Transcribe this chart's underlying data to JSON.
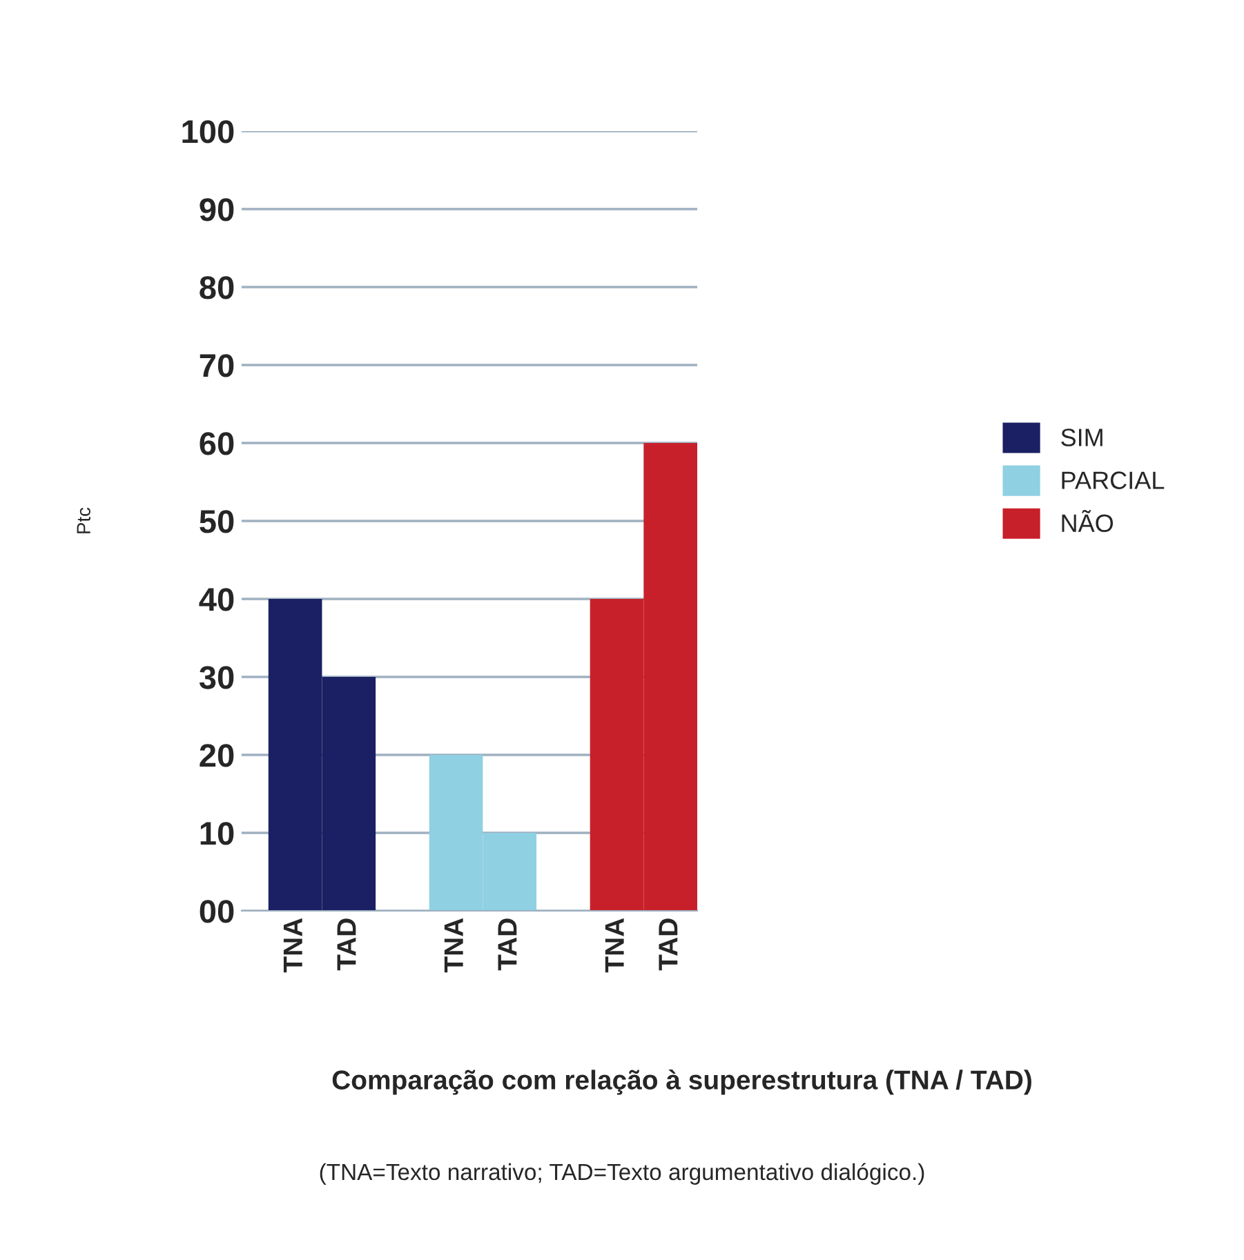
{
  "chart_data": {
    "type": "bar",
    "xlabel": "Comparação com relação à superestrutura (TNA / TAD)",
    "ylabel": "Ptc",
    "categories": [
      "TNA",
      "TAD",
      null,
      "TNA",
      "TAD",
      null,
      "TNA",
      "TAD"
    ],
    "series": [
      {
        "name": "SIM",
        "color": "#1b1f63",
        "values": [
          40,
          30,
          null,
          null,
          null,
          null,
          null,
          null
        ]
      },
      {
        "name": "PARCIAL",
        "color": "#8fd0e3",
        "values": [
          null,
          null,
          null,
          20,
          10,
          null,
          null,
          null
        ]
      },
      {
        "name": "NÃO",
        "color": "#c8202a",
        "values": [
          null,
          null,
          null,
          null,
          null,
          null,
          40,
          60
        ]
      }
    ],
    "ylim": [
      0,
      100
    ],
    "yticks": [
      {
        "value": 0,
        "label": "00"
      },
      10,
      20,
      30,
      40,
      50,
      60,
      70,
      80,
      90,
      100
    ],
    "grid": "y",
    "legend": "right",
    "annotations": [
      "(TNA=Texto narrativo; TAD=Texto argumentativo dialógico.)"
    ]
  }
}
